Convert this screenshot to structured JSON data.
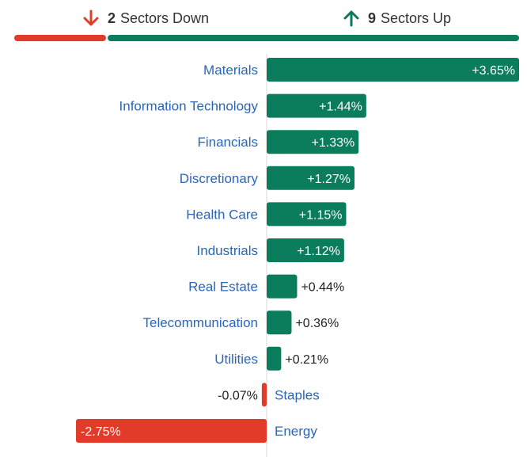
{
  "summary": {
    "down": {
      "count": "2",
      "label": "Sectors Down",
      "color": "#e03c2c",
      "icon": "arrow-down-icon"
    },
    "up": {
      "count": "9",
      "label": "Sectors Up",
      "color": "#0a7a5a",
      "icon": "arrow-up-icon"
    }
  },
  "colors": {
    "positive": "#0b7d5c",
    "negative": "#e23b2a",
    "label": "#2a66b8",
    "axis": "#d8d8d8"
  },
  "chart_data": {
    "type": "bar",
    "orientation": "horizontal",
    "categories": [
      "Materials",
      "Information Technology",
      "Financials",
      "Discretionary",
      "Health Care",
      "Industrials",
      "Real Estate",
      "Telecommunication",
      "Utilities",
      "Staples",
      "Energy"
    ],
    "values": [
      3.65,
      1.44,
      1.33,
      1.27,
      1.15,
      1.12,
      0.44,
      0.36,
      0.21,
      -0.07,
      -2.75
    ],
    "value_labels": [
      "+3.65%",
      "+1.44%",
      "+1.33%",
      "+1.27%",
      "+1.15%",
      "+1.12%",
      "+0.44%",
      "+0.36%",
      "+0.21%",
      "-0.07%",
      "-2.75%"
    ],
    "xlim": [
      -2.75,
      3.65
    ],
    "grid": false,
    "legend": "none"
  }
}
